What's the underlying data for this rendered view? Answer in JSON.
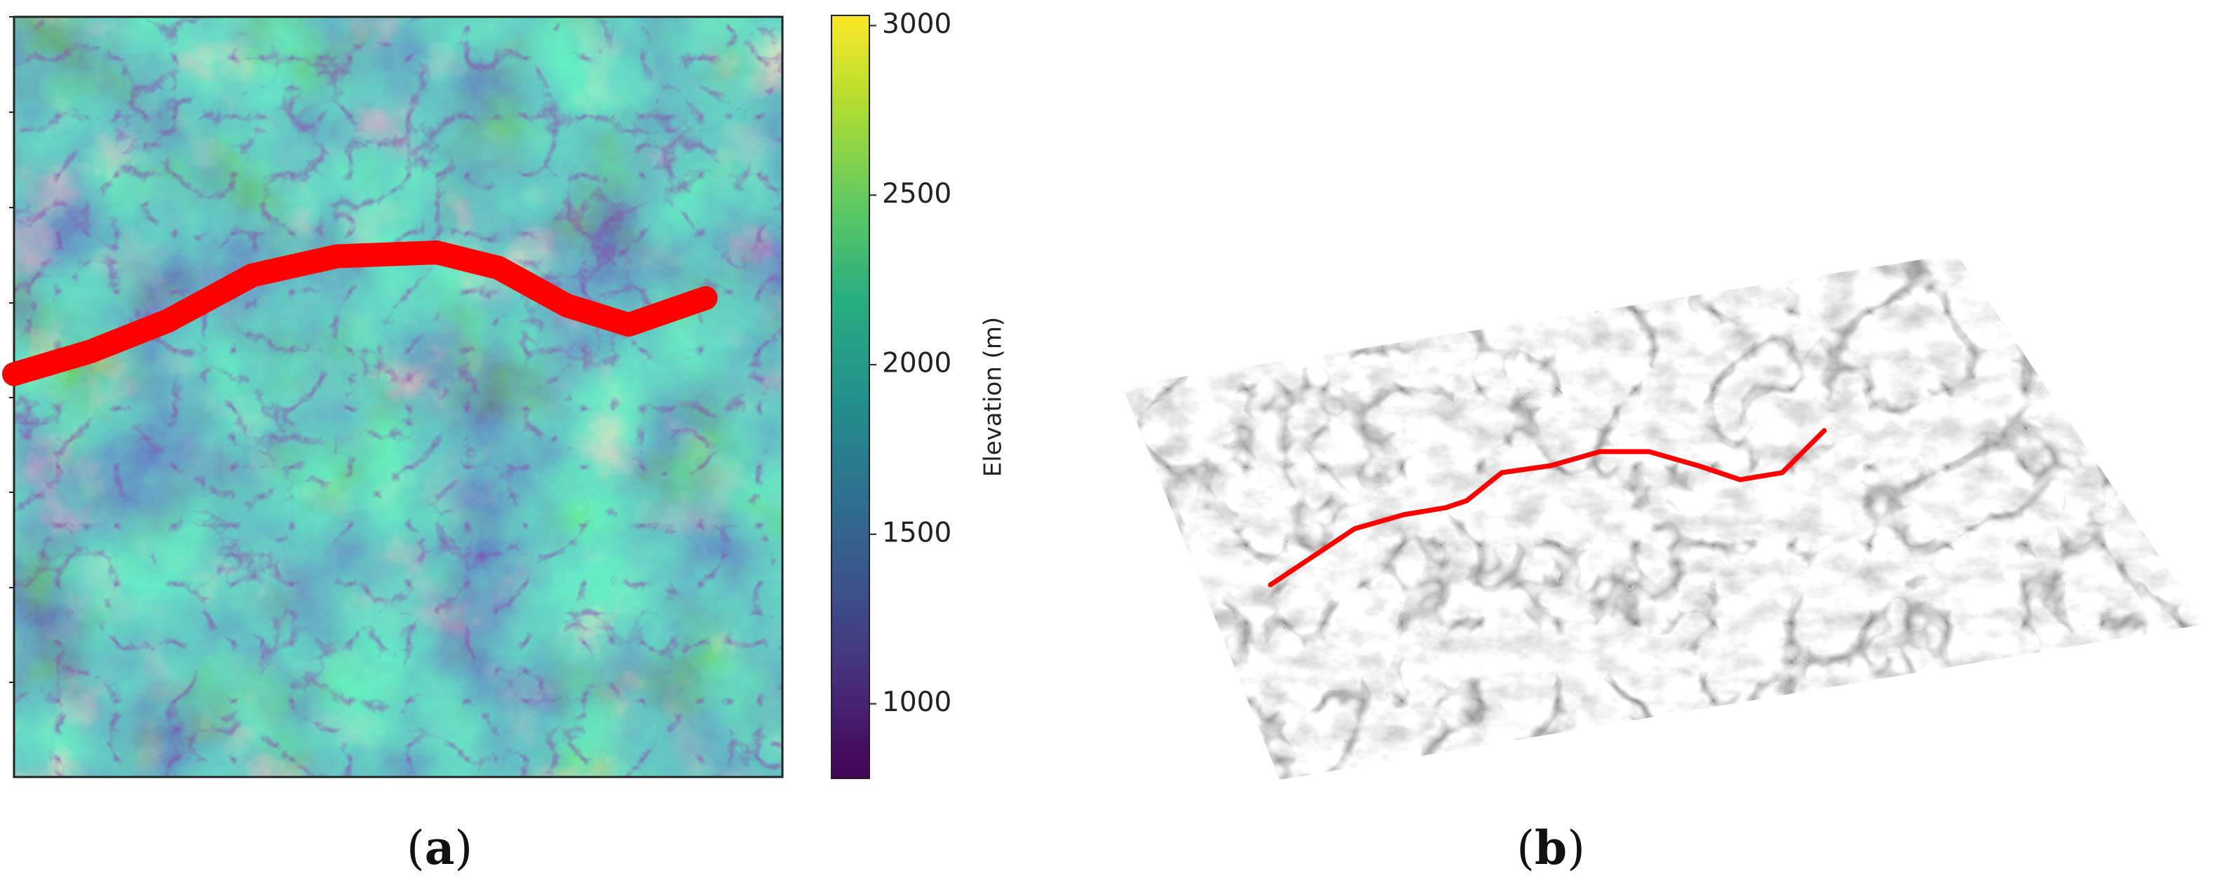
{
  "figure": {
    "panels": [
      {
        "caption_open": "(",
        "caption_letter": "a",
        "caption_close": ")"
      },
      {
        "caption_open": "(",
        "caption_letter": "b",
        "caption_close": ")"
      }
    ]
  },
  "chart_data": [
    {
      "type": "heatmap",
      "panel": "a",
      "title": "",
      "xlabel": "",
      "ylabel": "",
      "colormap": "viridis",
      "colorbar": {
        "label": "Elevation (m)",
        "range": [
          780,
          3030
        ],
        "ticks": [
          1000,
          1500,
          2000,
          2500,
          3000
        ],
        "tick_labels": [
          "1000",
          "1500",
          "2000",
          "2500",
          "3000"
        ]
      },
      "overlay_line": {
        "color": "#ff0000",
        "description_of_route": "thick red path crossing the map from left edge to right",
        "x": [
          0.0,
          0.1,
          0.2,
          0.31,
          0.42,
          0.55,
          0.63,
          0.72,
          0.8,
          0.9
        ],
        "y": [
          0.47,
          0.44,
          0.4,
          0.34,
          0.315,
          0.31,
          0.33,
          0.38,
          0.405,
          0.37
        ]
      }
    },
    {
      "type": "surface",
      "panel": "b",
      "title": "",
      "colormap": "gray",
      "overlay_line": {
        "color": "#ff0000",
        "x": [
          0.0,
          0.06,
          0.12,
          0.19,
          0.25,
          0.28,
          0.33,
          0.4,
          0.47,
          0.54,
          0.61,
          0.67,
          0.73,
          0.79
        ],
        "y": [
          0.0,
          0.04,
          0.08,
          0.1,
          0.11,
          0.12,
          0.16,
          0.17,
          0.19,
          0.19,
          0.17,
          0.15,
          0.16,
          0.22
        ]
      }
    }
  ],
  "colors": {
    "route": "#ff0000",
    "axes_frame": "#222222",
    "background": "#ffffff"
  }
}
